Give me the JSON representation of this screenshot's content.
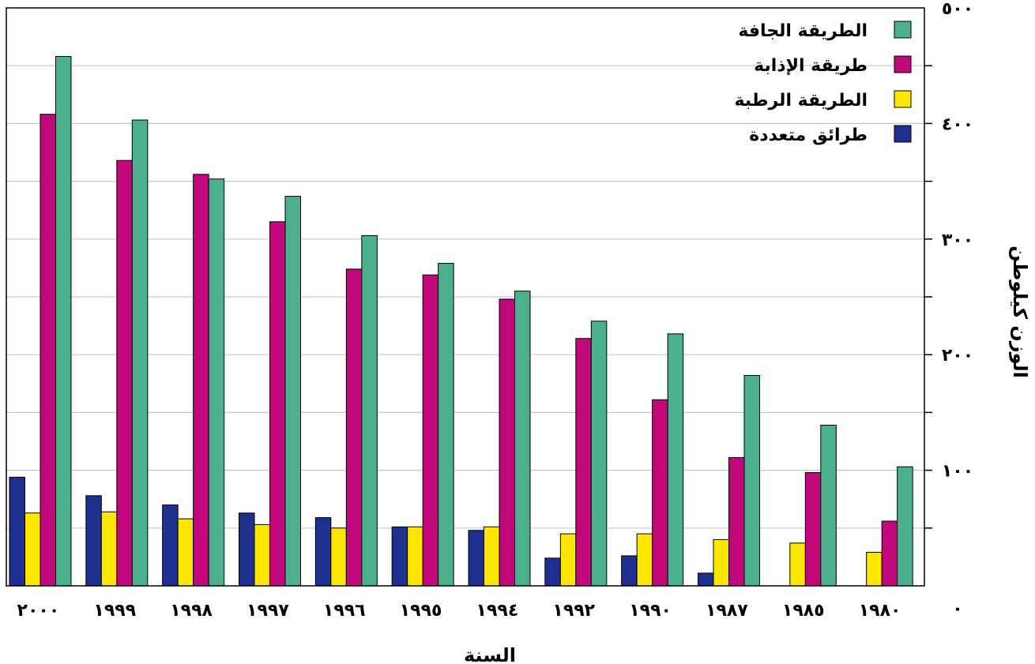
{
  "chart_data": {
    "type": "bar",
    "title": "",
    "xlabel": "السنة",
    "ylabel": "الوزن كيلوطن",
    "ylim": [
      0,
      500
    ],
    "y_ticks": [
      0,
      100,
      200,
      300,
      400,
      500
    ],
    "y_tick_labels": [
      "٠",
      "١٠٠",
      "٢٠٠",
      "٣٠٠",
      "٤٠٠",
      "٥٠٠"
    ],
    "grid": true,
    "legend_position": "top-right",
    "categories": [
      "٢٠٠٠",
      "١٩٩٩",
      "١٩٩٨",
      "١٩٩٧",
      "١٩٩٦",
      "١٩٩٥",
      "١٩٩٤",
      "١٩٩٢",
      "١٩٩٠",
      "١٩٨٧",
      "١٩٨٥",
      "١٩٨٠"
    ],
    "series": [
      {
        "name": "طرائق متعددة",
        "color": "#1f2f8f",
        "values": [
          94,
          78,
          70,
          63,
          59,
          51,
          48,
          24,
          26,
          11,
          0,
          0
        ]
      },
      {
        "name": "الطريقة الرطبة",
        "color": "#ffe600",
        "values": [
          63,
          64,
          58,
          53,
          50,
          51,
          51,
          45,
          45,
          40,
          37,
          29
        ]
      },
      {
        "name": "طريقة الإذابة",
        "color": "#c0087a",
        "values": [
          408,
          368,
          356,
          315,
          274,
          269,
          248,
          214,
          161,
          111,
          98,
          56
        ]
      },
      {
        "name": "الطريقة الجافة",
        "color": "#4cb08e",
        "values": [
          458,
          403,
          352,
          337,
          303,
          279,
          255,
          229,
          218,
          182,
          139,
          103
        ]
      }
    ],
    "legend_order": [
      "الطريقة الجافة",
      "طريقة الإذابة",
      "الطريقة الرطبة",
      "طرائق متعددة"
    ]
  }
}
